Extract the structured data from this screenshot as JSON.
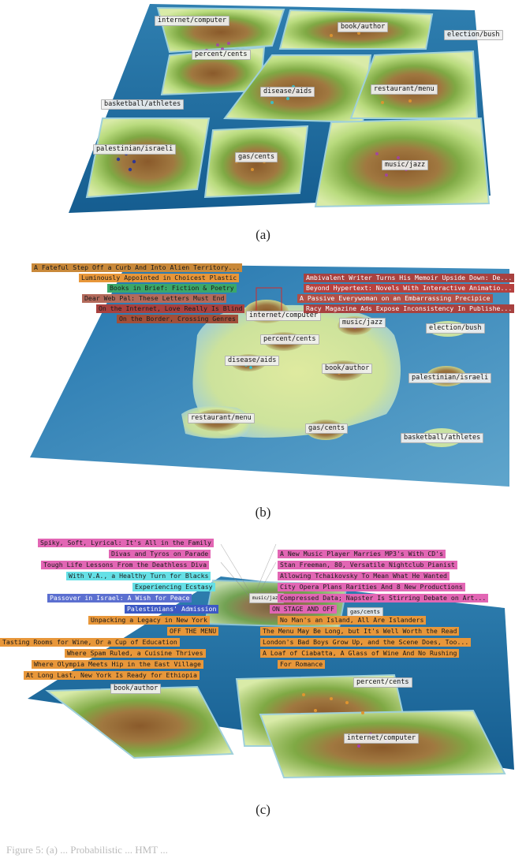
{
  "figures": [
    {
      "caption": "(a)",
      "topic_labels": [
        "internet/computer",
        "book/author",
        "election/bush",
        "percent/cents",
        "disease/aids",
        "restaurant/menu",
        "basketball/athletes",
        "palestinian/israeli",
        "gas/cents",
        "music/jazz"
      ],
      "snippets": []
    },
    {
      "caption": "(b)",
      "topic_labels": [
        "internet/computer",
        "music/jazz",
        "election/bush",
        "percent/cents",
        "disease/aids",
        "book/author",
        "palestinian/israeli",
        "restaurant/menu",
        "gas/cents",
        "basketball/athletes"
      ],
      "snippets": [
        "A Fateful Step Off a Curb And Into Alien Territory...",
        "Luminously Appointed in Choicest Plastic",
        "Books in Brief: Fiction & Poetry",
        "Dear Web Pal: These Letters Must End",
        "On the Internet, Love Really Is Blind",
        "On the Border, Crossing Genres",
        "Ambivalent Writer Turns His Memoir Upside Down: De...",
        "Beyond Hypertext: Novels With Interactive Animatio...",
        "A Passive Everywoman on an Embarrassing Precipice",
        "Racy Magazine Ads Expose Inconsistency In Publishe..."
      ]
    },
    {
      "caption": "(c)",
      "topic_labels": [
        "music/jazz",
        "gas/cents",
        "book/author",
        "percent/cents",
        "internet/computer"
      ],
      "snippets": [
        "Spiky, Soft, Lyrical: It's All in the Family",
        "Divas and Tyros on Parade",
        "Tough Life Lessons From the Deathless Diva",
        "With V.A., a Healthy Turn for Blacks",
        "Experiencing Ecstasy",
        "Passover in Israel: A Wish for Peace",
        "Palestinians' Admission",
        "Unpacking a Legacy in New York",
        "OFF THE MENU",
        "Tasting Rooms for Wine, Or a Cup of Education",
        "Where Spam Ruled, a Cuisine Thrives",
        "Where Olympia Meets Hip in the East Village",
        "At Long Last, New York Is Ready for Ethiopia",
        "A New Music Player Marries MP3's With CD's",
        "Stan Freeman, 80, Versatile Nightclub Pianist",
        "Allowing Tchaikovsky To Mean What He Wanted",
        "City Opera Plans Rarities And 8 New Productions",
        "Compressed Data; Napster Is Stirring Debate on Art...",
        "ON STAGE AND OFF",
        "No Man's an Island, All Are Islanders",
        "The Menu May Be Long, but It's Well Worth the Read",
        "London's Bad Boys Grow Up, and the Scene Does, Too...",
        "A Loaf of Ciabatta, A Glass of Wine And No Rushing",
        "For Romance"
      ]
    }
  ],
  "footer_text": "Figure 5: (a) ... Probabilistic ... HMT ... ",
  "colors": {
    "ocean": "#1d6aa0",
    "shore": "#7fc3d6",
    "lowland": "#b6d97a",
    "highland": "#7aa844",
    "peak": "#8a5a2b",
    "snippet_magenta": "#e266b4",
    "snippet_orange": "#e8973a",
    "snippet_cyan": "#65e0e6",
    "snippet_blue": "#3c59c4",
    "snippet_red": "#a8413f",
    "snippet_gray": "#ececec"
  }
}
